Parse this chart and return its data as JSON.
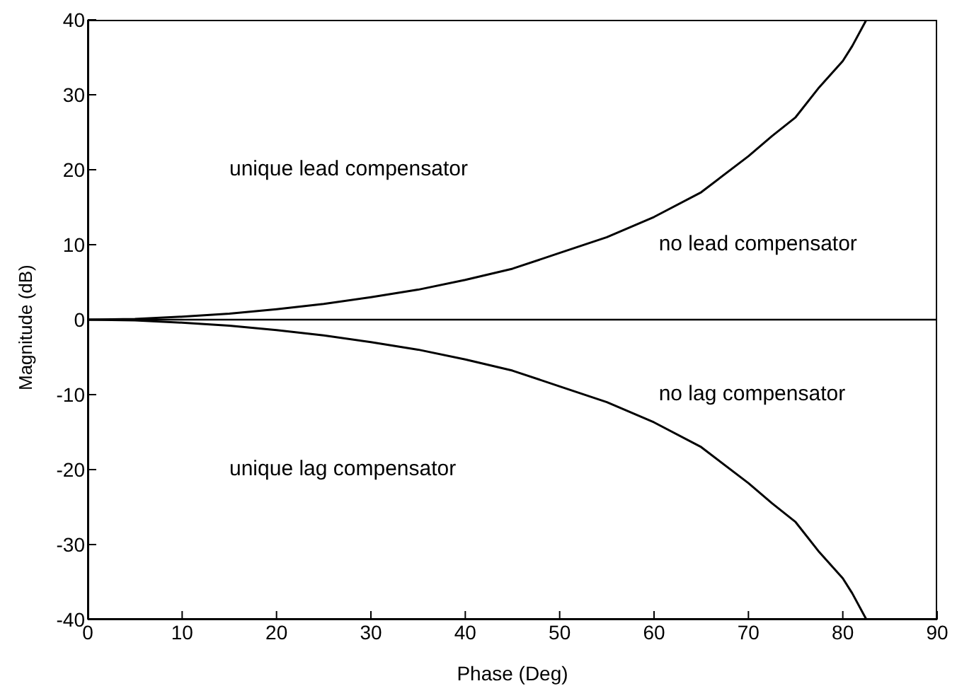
{
  "chart_data": {
    "type": "line",
    "xlabel": "Phase (Deg)",
    "ylabel": "Magnitude (dB)",
    "x": [
      0,
      5,
      10,
      15,
      20,
      25,
      30,
      35,
      40,
      45,
      50,
      55,
      60,
      65,
      70,
      72.5,
      75,
      77.5,
      80,
      81,
      82.5
    ],
    "series": [
      {
        "color": "#000000",
        "values": [
          0,
          0.1,
          0.4,
          0.8,
          1.4,
          2.1,
          3,
          4,
          5.3,
          6.8,
          8.9,
          11,
          13.7,
          17,
          21.8,
          24.5,
          27,
          31,
          34.5,
          36.5,
          40
        ]
      },
      {
        "color": "#000000",
        "values": [
          0,
          -0.1,
          -0.4,
          -0.8,
          -1.4,
          -2.1,
          -3,
          -4,
          -5.3,
          -6.8,
          -8.9,
          -11,
          -13.7,
          -17,
          -21.8,
          -24.5,
          -27,
          -31,
          -34.5,
          -36.5,
          -40
        ]
      }
    ],
    "xlim": [
      0,
      90
    ],
    "xticks": [
      0,
      10,
      20,
      30,
      40,
      50,
      60,
      70,
      80,
      90
    ],
    "ylim": [
      -40,
      40
    ],
    "yticks": [
      -40,
      -30,
      -20,
      -10,
      0,
      10,
      20,
      30,
      40
    ],
    "ref_lines": [
      {
        "axis": "y",
        "value": 0,
        "color": "#000000"
      }
    ],
    "annotations": [
      "unique lead compensator",
      "no lead compensator",
      "no lag compensator",
      "unique lag compensator"
    ],
    "grid": false,
    "marker": "none",
    "line_style": "solid"
  }
}
